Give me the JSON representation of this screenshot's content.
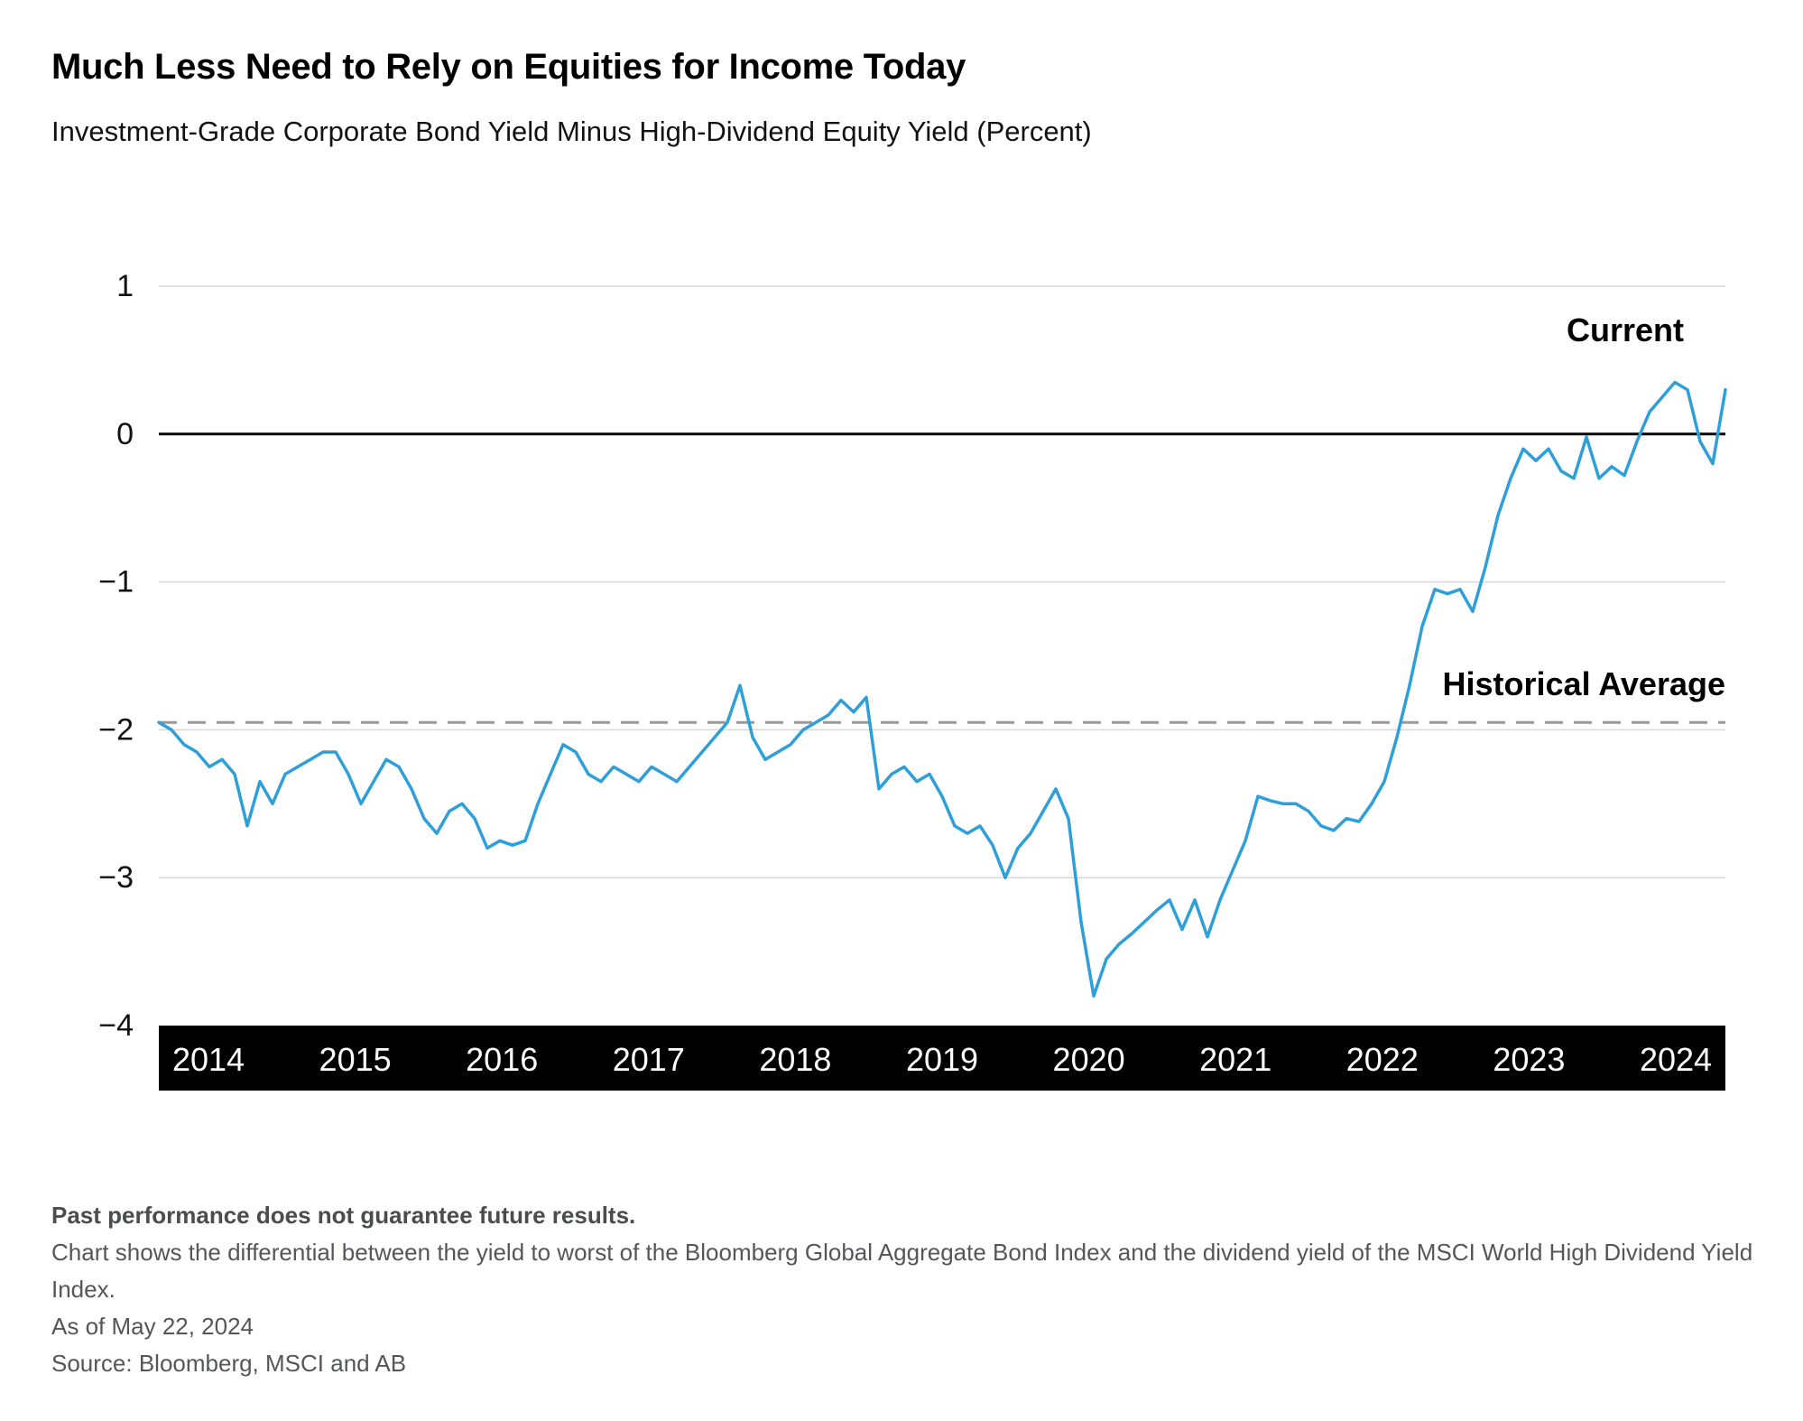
{
  "header": {
    "title": "Much Less Need to Rely on Equities for Income Today",
    "subtitle": "Investment-Grade Corporate Bond Yield Minus High-Dividend Equity Yield (Percent)"
  },
  "annotations": {
    "current_label": "Current",
    "historical_average_label": "Historical Average"
  },
  "chart_data": {
    "type": "line",
    "title": "Investment-Grade Corporate Bond Yield Minus High-Dividend Equity Yield (Percent)",
    "series_name": "Bond yield minus high-dividend equity yield",
    "frequency": "monthly",
    "x_start": "2014-01",
    "x_end": "2024-05",
    "x_tick_labels": [
      "2014",
      "2015",
      "2016",
      "2017",
      "2018",
      "2019",
      "2020",
      "2021",
      "2022",
      "2023",
      "2024"
    ],
    "y_ticks": [
      1,
      0,
      -1,
      -2,
      -3,
      -4
    ],
    "ylim": [
      -4,
      1
    ],
    "grid": true,
    "legend": false,
    "historical_average": -1.95,
    "values": [
      -1.95,
      -2.0,
      -2.1,
      -2.15,
      -2.25,
      -2.2,
      -2.3,
      -2.65,
      -2.35,
      -2.5,
      -2.3,
      -2.25,
      -2.2,
      -2.15,
      -2.15,
      -2.3,
      -2.5,
      -2.35,
      -2.2,
      -2.25,
      -2.4,
      -2.6,
      -2.7,
      -2.55,
      -2.5,
      -2.6,
      -2.8,
      -2.75,
      -2.78,
      -2.75,
      -2.5,
      -2.3,
      -2.1,
      -2.15,
      -2.3,
      -2.35,
      -2.25,
      -2.3,
      -2.35,
      -2.25,
      -2.3,
      -2.35,
      -2.25,
      -2.15,
      -2.05,
      -1.95,
      -1.7,
      -2.05,
      -2.2,
      -2.15,
      -2.1,
      -2.0,
      -1.95,
      -1.9,
      -1.8,
      -1.88,
      -1.78,
      -2.4,
      -2.3,
      -2.25,
      -2.35,
      -2.3,
      -2.45,
      -2.65,
      -2.7,
      -2.65,
      -2.78,
      -3.0,
      -2.8,
      -2.7,
      -2.55,
      -2.4,
      -2.6,
      -3.3,
      -3.8,
      -3.55,
      -3.45,
      -3.38,
      -3.3,
      -3.22,
      -3.15,
      -3.35,
      -3.15,
      -3.4,
      -3.15,
      -2.95,
      -2.75,
      -2.45,
      -2.48,
      -2.5,
      -2.5,
      -2.55,
      -2.65,
      -2.68,
      -2.6,
      -2.62,
      -2.5,
      -2.35,
      -2.05,
      -1.7,
      -1.3,
      -1.05,
      -1.08,
      -1.05,
      -1.2,
      -0.9,
      -0.55,
      -0.3,
      -0.1,
      -0.18,
      -0.1,
      -0.25,
      -0.3,
      -0.02,
      -0.3,
      -0.22,
      -0.28,
      -0.05,
      0.15,
      0.25,
      0.35,
      0.3,
      -0.05,
      -0.2,
      0.3
    ],
    "colors": {
      "line": "#2E9FD9",
      "average_line": "#999999",
      "grid": "#D8D8D8",
      "zero_line": "#000000",
      "axis_band": "#000000",
      "axis_band_text": "#FFFFFF",
      "tick_text": "#111111"
    }
  },
  "footer": {
    "disclaimer": "Past performance does not guarantee future results.",
    "description": "Chart shows the differential between the yield to worst of the Bloomberg Global Aggregate Bond Index and the dividend yield of the MSCI World High Dividend Yield Index.",
    "as_of": "As of May 22, 2024",
    "source": "Source: Bloomberg, MSCI and AB"
  }
}
